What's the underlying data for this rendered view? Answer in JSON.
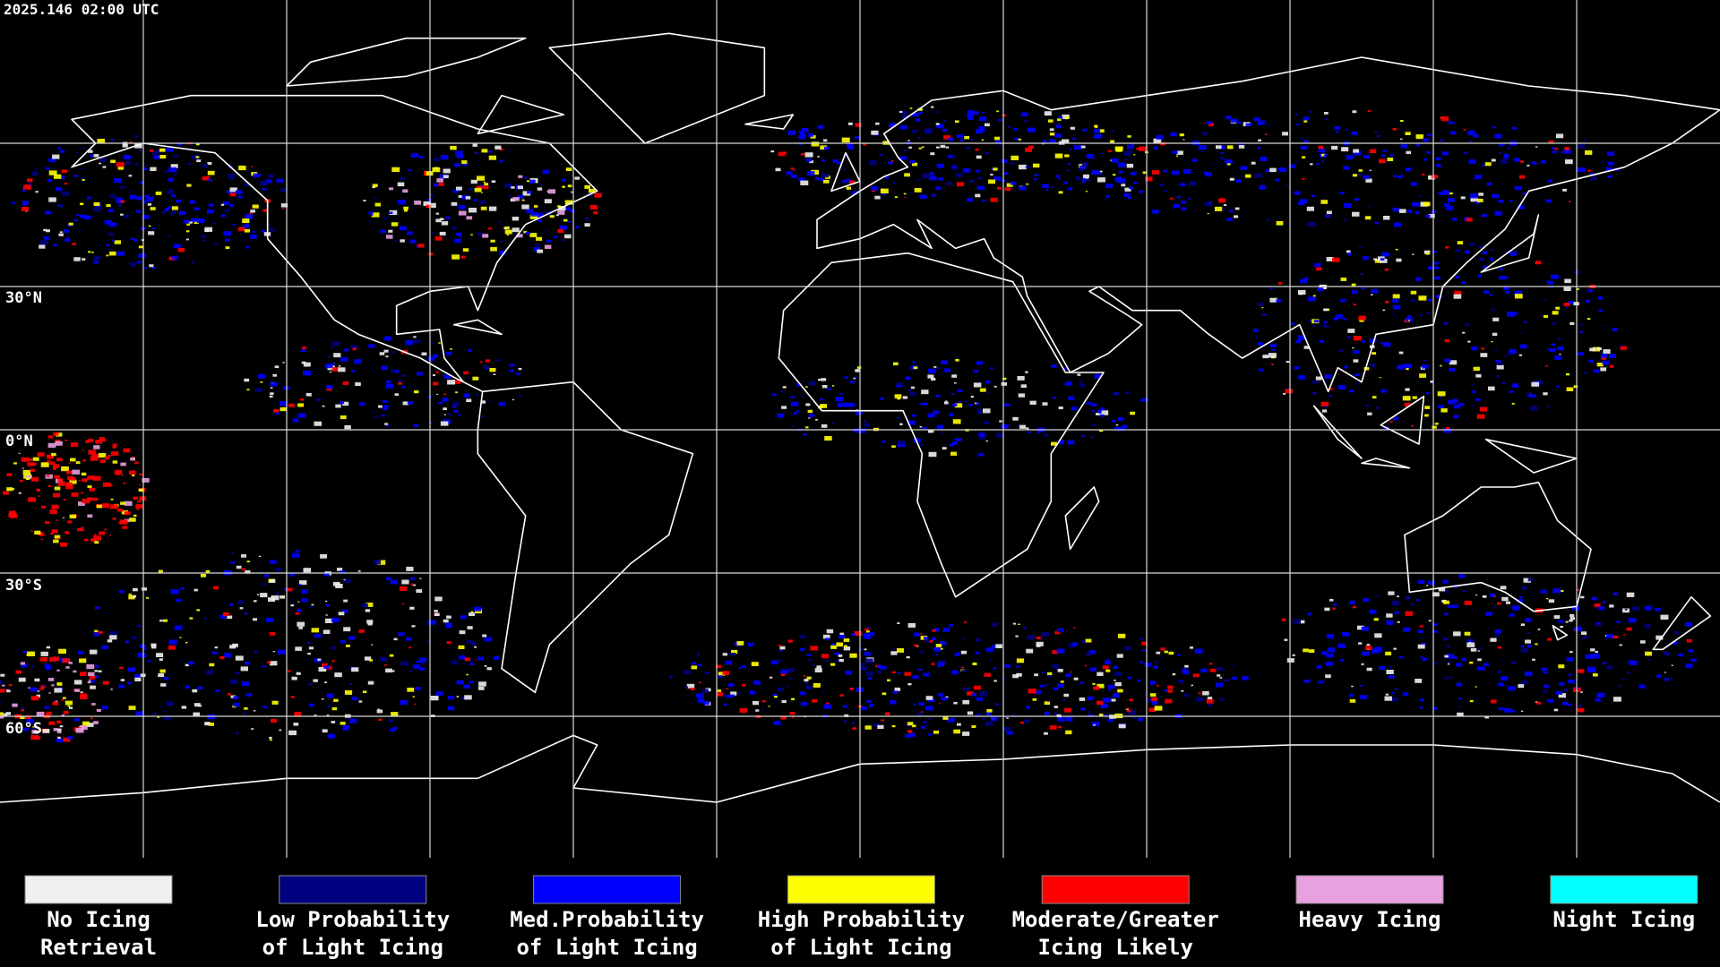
{
  "header": {
    "timestamp": "2025.146 02:00 UTC"
  },
  "map": {
    "latitude_labels": [
      "30°N",
      "0°N",
      "30°S",
      "60°S"
    ]
  },
  "legend": {
    "items": [
      {
        "label": [
          "No Icing",
          "Retrieval"
        ],
        "color": "#f0f0f0"
      },
      {
        "label": [
          "Low Probability",
          "of Light Icing"
        ],
        "color": "#000080"
      },
      {
        "label": [
          "Med.Probability",
          "of Light Icing"
        ],
        "color": "#0000ff"
      },
      {
        "label": [
          "High Probability",
          "of Light Icing"
        ],
        "color": "#ffff00"
      },
      {
        "label": [
          "Moderate/Greater",
          "Icing Likely"
        ],
        "color": "#ff0000"
      },
      {
        "label": [
          "Heavy Icing"
        ],
        "color": "#e8a0e0"
      },
      {
        "label": [
          "Night Icing"
        ],
        "color": "#00ffff"
      }
    ]
  }
}
